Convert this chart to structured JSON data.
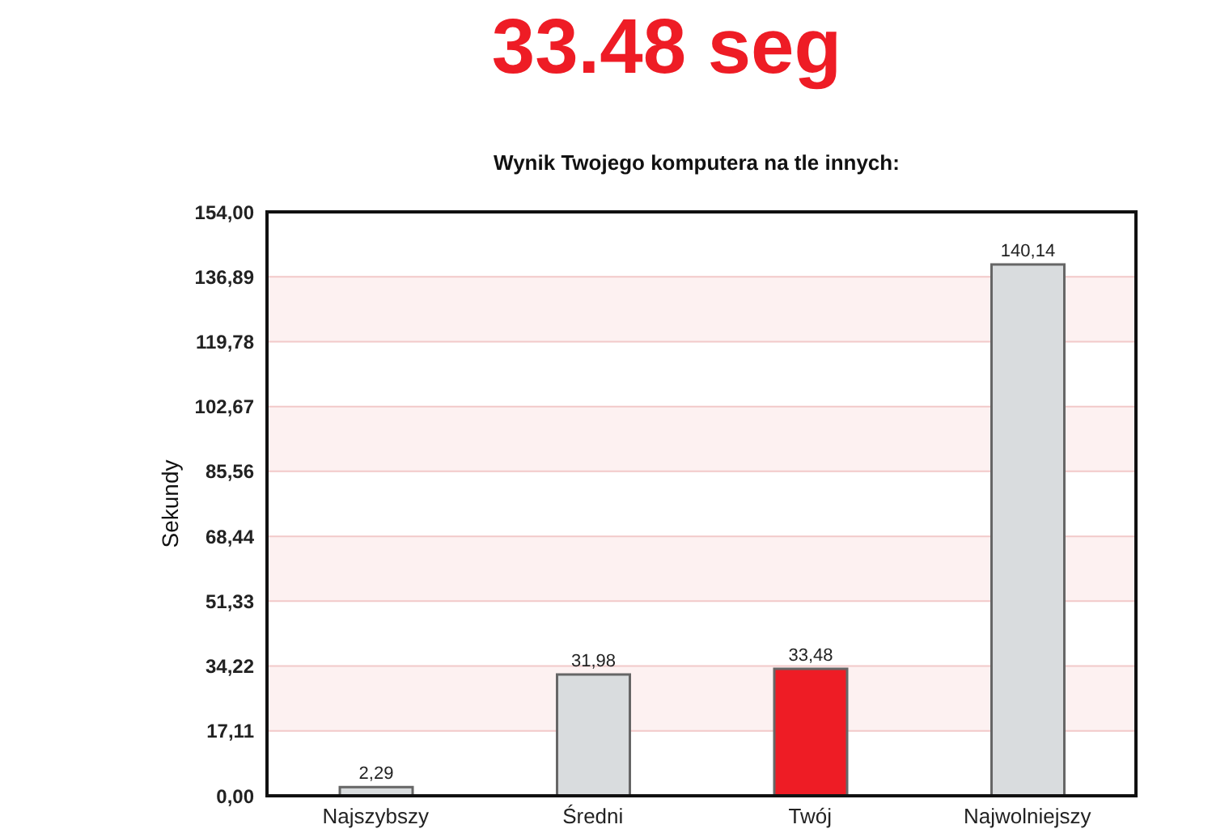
{
  "chart_data": {
    "type": "bar",
    "title": "33.48 seg",
    "subtitle": "Wynik Twojego komputera na tle innych:",
    "ylabel": "Sekundy",
    "categories": [
      "Najszybszy",
      "Średni",
      "Twój",
      "Najwolniejszy"
    ],
    "values": [
      2.29,
      31.98,
      33.48,
      140.14
    ],
    "colors": [
      "#d9dcde",
      "#d9dcde",
      "#ee1c25",
      "#d9dcde"
    ],
    "value_labels": [
      "2,29",
      "31,98",
      "33,48",
      "140,14"
    ],
    "ylim": [
      0,
      154
    ],
    "yticks": [
      {
        "value": 0,
        "label": "0,00"
      },
      {
        "value": 17.11,
        "label": "17,11"
      },
      {
        "value": 34.22,
        "label": "34,22"
      },
      {
        "value": 51.33,
        "label": "51,33"
      },
      {
        "value": 68.44,
        "label": "68,44"
      },
      {
        "value": 85.56,
        "label": "85,56"
      },
      {
        "value": 102.67,
        "label": "102,67"
      },
      {
        "value": 119.78,
        "label": "119,78"
      },
      {
        "value": 136.89,
        "label": "136,89"
      },
      {
        "value": 154,
        "label": "154,00"
      }
    ],
    "grid": "y"
  }
}
